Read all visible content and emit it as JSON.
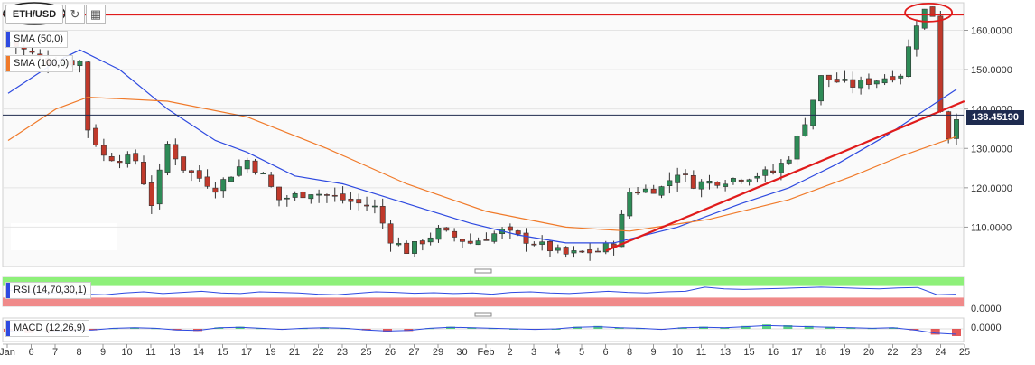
{
  "toolbar": {
    "symbol": "ETH/USD",
    "refresh_icon": "refresh-icon",
    "interval_icon": "interval-icon"
  },
  "indicators": {
    "sma50": {
      "label": "SMA (50,0)",
      "color": "#2e4ae0"
    },
    "sma100": {
      "label": "SMA (100,0)",
      "color": "#f07a2a"
    },
    "rsi": {
      "label": "RSI (14,70,30,1)"
    },
    "macd": {
      "label": "MACD (12,26,9)"
    }
  },
  "last_price_label": "138.45190",
  "chart_data": [
    {
      "type": "candlestick",
      "title": "",
      "y_ticks": [
        "160.0000",
        "150.0000",
        "140.0000",
        "130.0000",
        "120.0000",
        "110.0000"
      ],
      "ylim": [
        100,
        167
      ],
      "x_ticks": [
        "Jan",
        "6",
        "7",
        "8",
        "9",
        "10",
        "11",
        "13",
        "14",
        "15",
        "17",
        "19",
        "21",
        "22",
        "23",
        "25",
        "26",
        "27",
        "29",
        "30",
        "Feb",
        "2",
        "3",
        "4",
        "5",
        "6",
        "8",
        "9",
        "10",
        "11",
        "13",
        "15",
        "16",
        "17",
        "18",
        "19",
        "20",
        "22",
        "23",
        "24",
        "25"
      ],
      "ohlc_waypoints": [
        {
          "x": 0,
          "close": 157
        },
        {
          "x": 5,
          "close": 152
        },
        {
          "x": 9,
          "close": 152
        },
        {
          "x": 10,
          "close": 135
        },
        {
          "x": 12,
          "close": 128
        },
        {
          "x": 16,
          "close": 127
        },
        {
          "x": 18,
          "close": 116
        },
        {
          "x": 20,
          "close": 131
        },
        {
          "x": 22,
          "close": 125
        },
        {
          "x": 26,
          "close": 120
        },
        {
          "x": 30,
          "close": 127
        },
        {
          "x": 32,
          "close": 123
        },
        {
          "x": 34,
          "close": 117
        },
        {
          "x": 38,
          "close": 119
        },
        {
          "x": 42,
          "close": 117
        },
        {
          "x": 46,
          "close": 115
        },
        {
          "x": 48,
          "close": 107
        },
        {
          "x": 50,
          "close": 104
        },
        {
          "x": 54,
          "close": 109
        },
        {
          "x": 58,
          "close": 106
        },
        {
          "x": 62,
          "close": 109
        },
        {
          "x": 66,
          "close": 106
        },
        {
          "x": 70,
          "close": 103
        },
        {
          "x": 74,
          "close": 104
        },
        {
          "x": 76,
          "close": 106
        },
        {
          "x": 78,
          "close": 119
        },
        {
          "x": 82,
          "close": 120
        },
        {
          "x": 84,
          "close": 124
        },
        {
          "x": 86,
          "close": 121
        },
        {
          "x": 90,
          "close": 122
        },
        {
          "x": 96,
          "close": 124
        },
        {
          "x": 98,
          "close": 128
        },
        {
          "x": 100,
          "close": 137
        },
        {
          "x": 102,
          "close": 148
        },
        {
          "x": 104,
          "close": 147
        },
        {
          "x": 106,
          "close": 146
        },
        {
          "x": 110,
          "close": 148
        },
        {
          "x": 112,
          "close": 149
        },
        {
          "x": 114,
          "close": 162
        },
        {
          "x": 115,
          "close": 165
        },
        {
          "x": 116,
          "close": 164
        },
        {
          "x": 117,
          "close": 140
        },
        {
          "x": 118,
          "close": 133
        },
        {
          "x": 119,
          "close": 138.45
        }
      ],
      "series": [
        {
          "name": "SMA (50,0)",
          "color": "#2e4ae0",
          "points": [
            [
              0,
              144
            ],
            [
              6,
              152
            ],
            [
              9,
              155
            ],
            [
              14,
              150
            ],
            [
              20,
              140
            ],
            [
              26,
              132
            ],
            [
              30,
              129
            ],
            [
              36,
              123
            ],
            [
              42,
              121
            ],
            [
              50,
              116
            ],
            [
              58,
              111
            ],
            [
              64,
              108
            ],
            [
              70,
              106
            ],
            [
              76,
              106
            ],
            [
              84,
              110
            ],
            [
              92,
              116
            ],
            [
              98,
              120
            ],
            [
              104,
              126
            ],
            [
              110,
              133
            ],
            [
              116,
              141
            ],
            [
              119,
              145
            ]
          ]
        },
        {
          "name": "SMA (100,0)",
          "color": "#f07a2a",
          "points": [
            [
              0,
              132
            ],
            [
              6,
              140
            ],
            [
              10,
              143
            ],
            [
              20,
              142
            ],
            [
              30,
              138
            ],
            [
              40,
              130
            ],
            [
              50,
              121
            ],
            [
              60,
              114
            ],
            [
              70,
              110
            ],
            [
              78,
              109
            ],
            [
              88,
              112
            ],
            [
              98,
              117
            ],
            [
              106,
              123
            ],
            [
              112,
              128
            ],
            [
              119,
              133
            ]
          ]
        }
      ],
      "annotations": {
        "horizontal_resistance": 164,
        "last_price": 138.45,
        "trendline": [
          [
            75,
            104
          ],
          [
            120,
            142
          ]
        ]
      }
    },
    {
      "type": "line",
      "title": "",
      "label": "RSI (14,70,30,1)",
      "ylim": [
        0,
        100
      ],
      "upper_band": 70,
      "lower_band": 30,
      "values": [
        55,
        50,
        45,
        48,
        42,
        40,
        46,
        50,
        44,
        48,
        52,
        46,
        44,
        50,
        48,
        46,
        42,
        40,
        45,
        50,
        48,
        45,
        47,
        44,
        46,
        42,
        48,
        50,
        46,
        44,
        48,
        52,
        48,
        46,
        50,
        52,
        66,
        60,
        58,
        60,
        62,
        64,
        66,
        64,
        62,
        60,
        63,
        65,
        40,
        42
      ]
    },
    {
      "type": "bar",
      "title": "",
      "label": "MACD (12,26,9)",
      "y_ticks": [
        "0.0000",
        "0.0000"
      ],
      "values": [
        -0.4,
        -0.6,
        -0.5,
        -0.3,
        -0.2,
        0.1,
        0.2,
        0.1,
        -0.2,
        -0.3,
        0.2,
        0.3,
        0.1,
        -0.1,
        0.1,
        0.2,
        0.1,
        -0.2,
        -0.4,
        -0.3,
        0.1,
        0.3,
        0.2,
        0.1,
        0.0,
        -0.1,
        0.0,
        0.3,
        0.4,
        0.2,
        0.1,
        -0.1,
        0.2,
        0.3,
        0.2,
        0.4,
        0.6,
        0.5,
        0.4,
        0.3,
        0.2,
        0.1,
        0.2,
        -0.2,
        -0.8,
        -1.0
      ]
    }
  ]
}
